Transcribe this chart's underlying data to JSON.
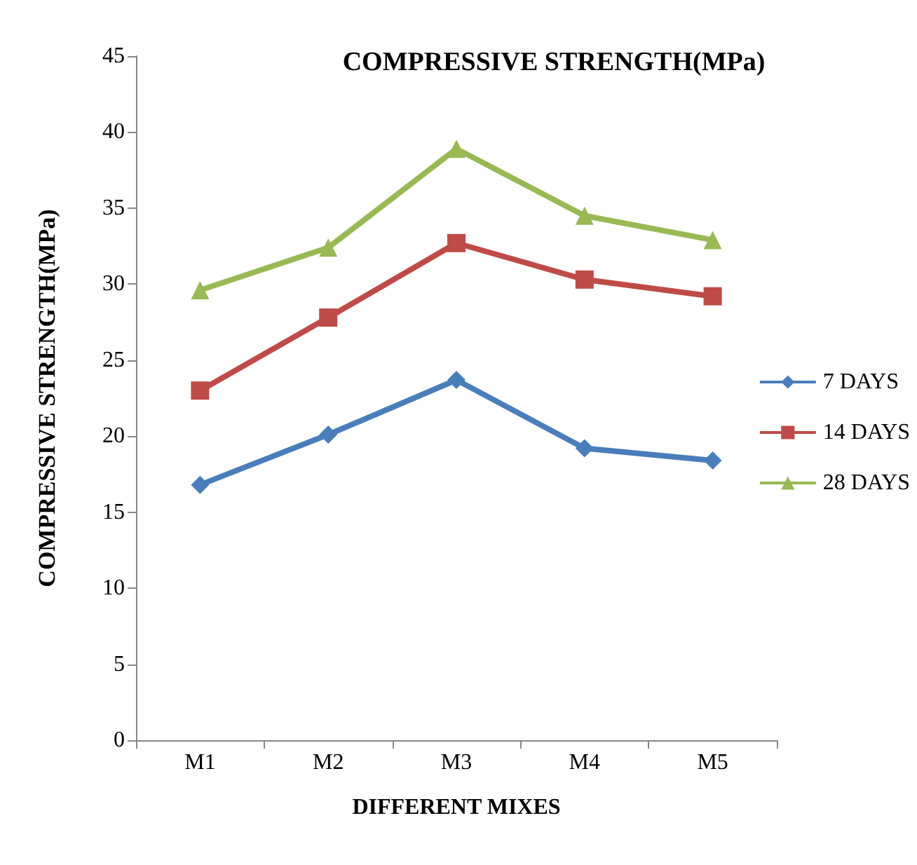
{
  "chart_data": {
    "type": "line",
    "title": "COMPRESSIVE STRENGTH(MPa)",
    "xlabel": "DIFFERENT MIXES",
    "ylabel": "COMPRESSIVE STRENGTH(MPa)",
    "categories": [
      "M1",
      "M2",
      "M3",
      "M4",
      "M5"
    ],
    "series": [
      {
        "name": "7 DAYS",
        "color": "#4a7ebb",
        "marker": "diamond",
        "values": [
          16.8,
          20.1,
          23.7,
          19.2,
          18.4
        ]
      },
      {
        "name": "14 DAYS",
        "color": "#be4b48",
        "marker": "square",
        "values": [
          23.0,
          27.8,
          32.7,
          30.3,
          29.2
        ]
      },
      {
        "name": "28 DAYS",
        "color": "#98b954",
        "marker": "triangle",
        "values": [
          29.6,
          32.4,
          38.9,
          34.5,
          32.9
        ]
      }
    ],
    "ylim": [
      0,
      45
    ],
    "yticks": [
      0,
      5,
      10,
      15,
      20,
      25,
      30,
      35,
      40,
      45
    ],
    "grid": false,
    "legend": "right"
  }
}
